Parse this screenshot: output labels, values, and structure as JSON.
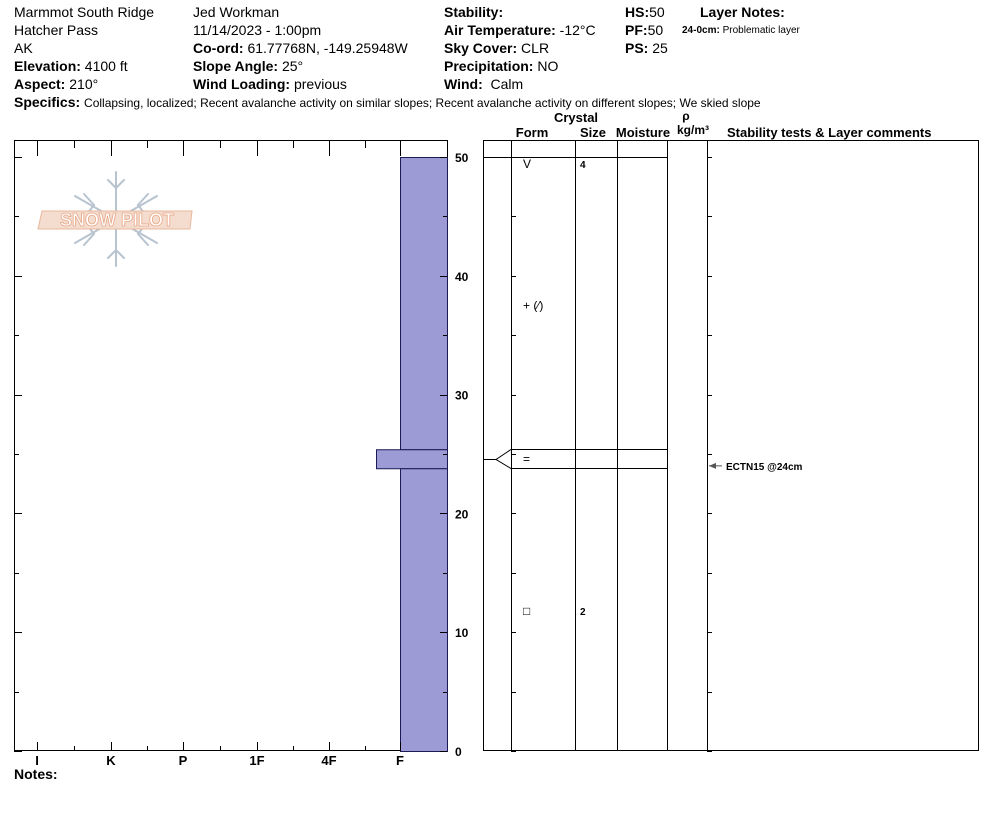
{
  "header": {
    "location": "Marmmot South Ridge",
    "area": "Hatcher Pass",
    "state": "AK",
    "elevation_label": "Elevation:",
    "elevation": "4100 ft",
    "aspect_label": "Aspect:",
    "aspect": "210°",
    "observer": "Jed Workman",
    "datetime": "11/14/2023 - 1:00pm",
    "coord_label": "Co-ord:",
    "coord": "61.77768N, -149.25948W",
    "slope_label": "Slope Angle:",
    "slope": "25°",
    "wind_loading_label": "Wind Loading:",
    "wind_loading": "previous",
    "stability_label": "Stability:",
    "stability": "",
    "air_temp_label": "Air Temperature:",
    "air_temp": "-12°C",
    "sky_label": "Sky Cover:",
    "sky": "CLR",
    "precip_label": "Precipitation:",
    "precip": "NO",
    "wind_label": "Wind:",
    "wind": "Calm",
    "hs_label": "HS:",
    "hs": "50",
    "pf_label": "PF:",
    "pf": "50",
    "ps_label": "PS:",
    "ps": "25",
    "layer_notes_label": "Layer Notes:",
    "layer_note_depth": "24-0cm:",
    "layer_note_text": "Problematic layer",
    "specifics_label": "Specifics:",
    "specifics": "Collapsing, localized;  Recent avalanche activity on similar slopes;  Recent avalanche activity on different slopes;  We skied slope"
  },
  "logo_text": "SNOW PILOT",
  "notes_label": "Notes:",
  "colors": {
    "hardness_fill": "#9c9bd6",
    "logo_text": "#f2c4ae",
    "logo_flake": "#b7c3cf"
  },
  "chart_data": {
    "type": "bar",
    "title": "",
    "ylabel": "",
    "ylim": [
      0,
      50
    ],
    "yticks": [
      0,
      10,
      20,
      30,
      40,
      50
    ],
    "hardness_scale": [
      "I",
      "K",
      "P",
      "1F",
      "4F",
      "F"
    ],
    "layers": [
      {
        "top": 50,
        "bottom": 25.4,
        "hardness": "F"
      },
      {
        "top": 25.4,
        "bottom": 23.8,
        "hardness": "F+"
      },
      {
        "top": 23.8,
        "bottom": 0,
        "hardness": "F"
      }
    ],
    "columns": {
      "crystal": "Crystal",
      "form": "Form",
      "size": "Size",
      "moisture": "Moisture",
      "rho": "ρ",
      "rho_unit": "kg/m³",
      "comments": "Stability tests & Layer comments"
    },
    "layer_details": [
      {
        "depth": 49.4,
        "form": "V",
        "size": "4"
      },
      {
        "depth": 37.5,
        "form": "+ (⁄)",
        "size": ""
      },
      {
        "depth": 24.6,
        "form": "=",
        "size": ""
      },
      {
        "depth": 11.8,
        "form": "□",
        "size": "2"
      }
    ],
    "stability_tests": [
      {
        "depth": 24,
        "label": "ECTN15 @24cm"
      }
    ]
  }
}
